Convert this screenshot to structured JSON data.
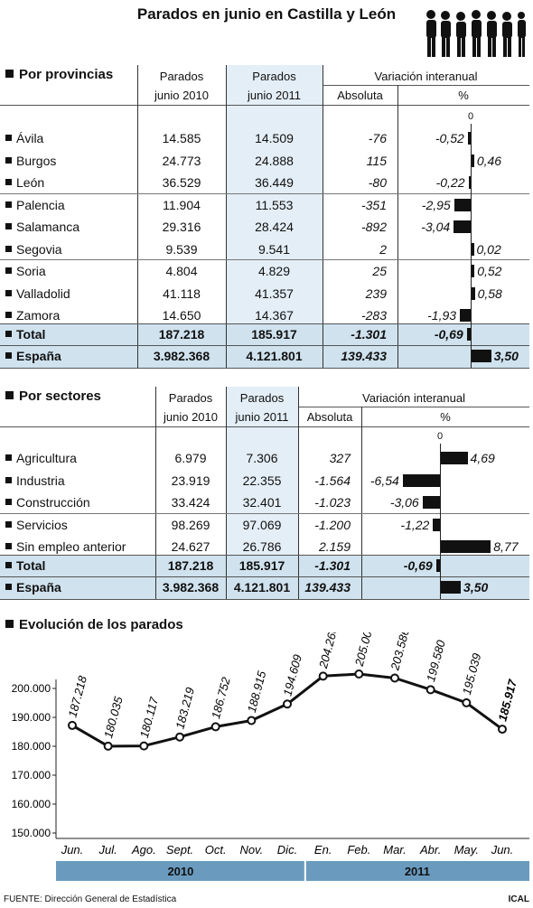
{
  "title": "Parados en junio en Castilla y León",
  "prov": {
    "section_title": "Por provincias",
    "headers": {
      "col1_l1": "Parados",
      "col1_l2": "junio 2010",
      "col2_l1": "Parados",
      "col2_l2": "junio 2011",
      "variacion": "Variación interanual",
      "absoluta": "Absoluta",
      "pct": "%",
      "zero": "0"
    },
    "rows": [
      {
        "name": "Ávila",
        "p2010": "14.585",
        "p2011": "14.509",
        "abs": "-76",
        "pct": "-0,52",
        "pct_value": -0.52
      },
      {
        "name": "Burgos",
        "p2010": "24.773",
        "p2011": "24.888",
        "abs": "115",
        "pct": "0,46",
        "pct_value": 0.46
      },
      {
        "name": "León",
        "p2010": "36.529",
        "p2011": "36.449",
        "abs": "-80",
        "pct": "-0,22",
        "pct_value": -0.22
      },
      {
        "name": "Palencia",
        "p2010": "11.904",
        "p2011": "11.553",
        "abs": "-351",
        "pct": "-2,95",
        "pct_value": -2.95
      },
      {
        "name": "Salamanca",
        "p2010": "29.316",
        "p2011": "28.424",
        "abs": "-892",
        "pct": "-3,04",
        "pct_value": -3.04
      },
      {
        "name": "Segovia",
        "p2010": "9.539",
        "p2011": "9.541",
        "abs": "2",
        "pct": "0,02",
        "pct_value": 0.02
      },
      {
        "name": "Soria",
        "p2010": "4.804",
        "p2011": "4.829",
        "abs": "25",
        "pct": "0,52",
        "pct_value": 0.52
      },
      {
        "name": "Valladolid",
        "p2010": "41.118",
        "p2011": "41.357",
        "abs": "239",
        "pct": "0,58",
        "pct_value": 0.58
      },
      {
        "name": "Zamora",
        "p2010": "14.650",
        "p2011": "14.367",
        "abs": "-283",
        "pct": "-1,93",
        "pct_value": -1.93
      }
    ],
    "total": {
      "name": "Total",
      "p2010": "187.218",
      "p2011": "185.917",
      "abs": "-1.301",
      "pct": "-0,69",
      "pct_value": -0.69
    },
    "espana": {
      "name": "España",
      "p2010": "3.982.368",
      "p2011": "4.121.801",
      "abs": "139.433",
      "pct": "3,50",
      "pct_value": 3.5
    }
  },
  "sect": {
    "section_title": "Por sectores",
    "headers": {
      "col1_l1": "Parados",
      "col1_l2": "junio 2010",
      "col2_l1": "Parados",
      "col2_l2": "junio 2011",
      "variacion": "Variación interanual",
      "absoluta": "Absoluta",
      "pct": "%",
      "zero": "0"
    },
    "rows": [
      {
        "name": "Agricultura",
        "p2010": "6.979",
        "p2011": "7.306",
        "abs": "327",
        "pct": "4,69",
        "pct_value": 4.69
      },
      {
        "name": "Industria",
        "p2010": "23.919",
        "p2011": "22.355",
        "abs": "-1.564",
        "pct": "-6,54",
        "pct_value": -6.54
      },
      {
        "name": "Construcción",
        "p2010": "33.424",
        "p2011": "32.401",
        "abs": "-1.023",
        "pct": "-3,06",
        "pct_value": -3.06
      },
      {
        "name": "Servicios",
        "p2010": "98.269",
        "p2011": "97.069",
        "abs": "-1.200",
        "pct": "-1,22",
        "pct_value": -1.22
      },
      {
        "name": "Sin empleo anterior",
        "p2010": "24.627",
        "p2011": "26.786",
        "abs": "2.159",
        "pct": "8,77",
        "pct_value": 8.77
      }
    ],
    "total": {
      "name": "Total",
      "p2010": "187.218",
      "p2011": "185.917",
      "abs": "-1.301",
      "pct": "-0,69",
      "pct_value": -0.69
    },
    "espana": {
      "name": "España",
      "p2010": "3.982.368",
      "p2011": "4.121.801",
      "abs": "139.433",
      "pct": "3,50",
      "pct_value": 3.5
    }
  },
  "evol": {
    "section_title": "Evolución de los parados"
  },
  "chart_data": {
    "type": "line",
    "title": "Evolución de los parados",
    "x": [
      "Jun.",
      "Jul.",
      "Ago.",
      "Sept.",
      "Oct.",
      "Nov.",
      "Dic.",
      "En.",
      "Feb.",
      "Mar.",
      "Abr.",
      "May.",
      "Jun."
    ],
    "values": [
      187218,
      180035,
      180117,
      183219,
      186752,
      188915,
      194609,
      204266,
      205006,
      203586,
      199580,
      195039,
      185917
    ],
    "point_labels": [
      "187.218",
      "180.035",
      "180.117",
      "183.219",
      "186.752",
      "188.915",
      "194.609",
      "204.266",
      "205.006",
      "203.586",
      "199.580",
      "195.039",
      "185.917"
    ],
    "y_ticks": [
      "200.000",
      "190.000",
      "180.000",
      "170.000",
      "160.000",
      "150.000"
    ],
    "y_tick_values": [
      200000,
      190000,
      180000,
      170000,
      160000,
      150000
    ],
    "ylim": [
      150000,
      200000
    ],
    "years": [
      "2010",
      "2011"
    ],
    "grid": false
  },
  "footer": {
    "source": "FUENTE: Dirección General de Estadística",
    "brand": "ICAL"
  },
  "colors": {
    "shade": "#e3eef7",
    "band": "#cfe2ee",
    "year_band": "#6a9bbf",
    "bar": "#111111"
  }
}
